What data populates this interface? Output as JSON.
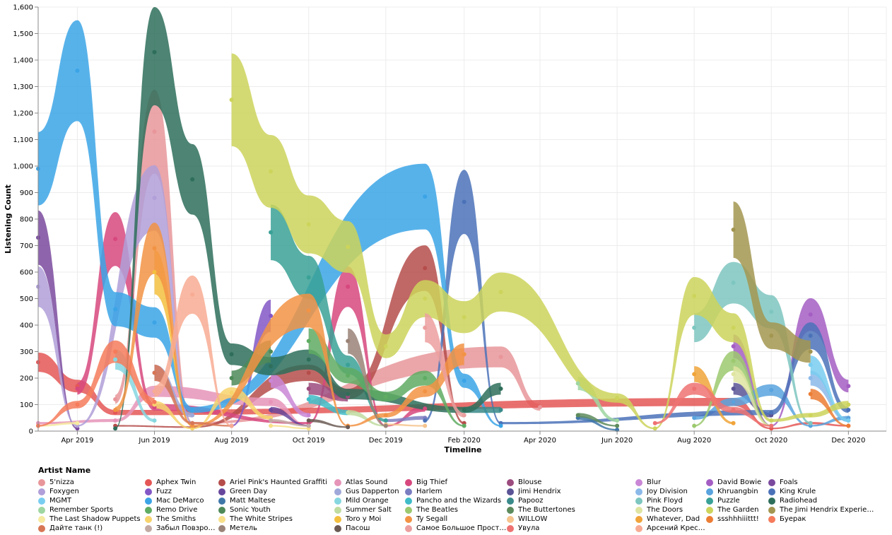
{
  "chart_data": {
    "type": "area",
    "subtype": "streamgraph-style ribbons (each artist shown as a band centred on its count)",
    "xlabel": "Timeline",
    "ylabel": "Listening Count",
    "xlim": [
      "2019-03-01",
      "2020-12-31"
    ],
    "ylim": [
      0,
      1600
    ],
    "x_ticks": [
      {
        "date": "2019-04-01",
        "label": "Apr 2019"
      },
      {
        "date": "2019-06-01",
        "label": "Jun 2019"
      },
      {
        "date": "2019-08-01",
        "label": "Aug 2019"
      },
      {
        "date": "2019-10-01",
        "label": "Oct 2019"
      },
      {
        "date": "2019-12-01",
        "label": "Dec 2019"
      },
      {
        "date": "2020-02-01",
        "label": "Feb 2020"
      },
      {
        "date": "2020-04-01",
        "label": "Apr 2020"
      },
      {
        "date": "2020-06-01",
        "label": "Jun 2020"
      },
      {
        "date": "2020-08-01",
        "label": "Aug 2020"
      },
      {
        "date": "2020-10-01",
        "label": "Oct 2020"
      },
      {
        "date": "2020-12-01",
        "label": "Dec 2020"
      }
    ],
    "y_ticks": [
      0,
      100,
      200,
      300,
      400,
      500,
      600,
      700,
      800,
      900,
      1000,
      1100,
      1200,
      1300,
      1400,
      1500,
      1600
    ],
    "y_tick_labels": [
      "0",
      "100",
      "200",
      "300",
      "400",
      "500",
      "600",
      "700",
      "800",
      "900",
      "1,000",
      "1,100",
      "1,200",
      "1,300",
      "1,400",
      "1,500",
      "1,600"
    ],
    "grid": true,
    "legend_title": "Artist Name",
    "legend_placement": "bottom",
    "series": [
      {
        "name": "5'nizza",
        "color": "#e8969a",
        "points": [
          [
            "2019-05-01",
            120
          ],
          [
            "2019-06-01",
            1130
          ],
          [
            "2019-07-01",
            30
          ],
          [
            "2020-03-01",
            280
          ],
          [
            "2020-04-01",
            90
          ]
        ]
      },
      {
        "name": "Aphex Twin",
        "color": "#e45756",
        "points": [
          [
            "2019-03-01",
            260
          ],
          [
            "2019-04-01",
            170
          ],
          [
            "2019-05-01",
            70
          ],
          [
            "2020-09-01",
            110
          ],
          [
            "2020-10-01",
            10
          ],
          [
            "2020-11-01",
            30
          ],
          [
            "2020-12-01",
            20
          ]
        ]
      },
      {
        "name": "Ariel Pink's Haunted Graffiti",
        "color": "#b54d4b",
        "points": [
          [
            "2019-05-01",
            20
          ],
          [
            "2019-07-01",
            15
          ],
          [
            "2019-10-01",
            220
          ],
          [
            "2019-11-01",
            140
          ],
          [
            "2020-01-01",
            615
          ],
          [
            "2020-02-01",
            30
          ]
        ]
      },
      {
        "name": "Atlas Sound",
        "color": "#e694b8",
        "points": [
          [
            "2019-03-01",
            30
          ],
          [
            "2019-05-01",
            40
          ],
          [
            "2019-06-01",
            150
          ],
          [
            "2019-09-01",
            110
          ],
          [
            "2019-10-01",
            20
          ]
        ]
      },
      {
        "name": "Big Thief",
        "color": "#d7487e",
        "points": [
          [
            "2019-04-01",
            160
          ],
          [
            "2019-05-01",
            725
          ],
          [
            "2019-06-01",
            90
          ],
          [
            "2019-10-01",
            30
          ],
          [
            "2019-11-01",
            545
          ],
          [
            "2019-12-01",
            20
          ],
          [
            "2020-01-01",
            85
          ]
        ]
      },
      {
        "name": "Blouse",
        "color": "#9c4b7e",
        "points": [
          [
            "2019-10-01",
            160
          ],
          [
            "2019-11-01",
            130
          ]
        ]
      },
      {
        "name": "Blur",
        "color": "#c987d6",
        "points": [
          [
            "2019-09-01",
            190
          ],
          [
            "2019-10-01",
            60
          ]
        ]
      },
      {
        "name": "David Bowie",
        "color": "#a45ec3",
        "points": [
          [
            "2020-09-01",
            320
          ],
          [
            "2020-10-01",
            20
          ],
          [
            "2020-11-01",
            440
          ],
          [
            "2020-12-01",
            170
          ]
        ]
      },
      {
        "name": "Foals",
        "color": "#7a4a9e",
        "points": [
          [
            "2019-03-01",
            730
          ],
          [
            "2019-04-01",
            10
          ]
        ]
      },
      {
        "name": "Foxygen",
        "color": "#b09fd8",
        "points": [
          [
            "2019-03-01",
            545
          ],
          [
            "2019-04-01",
            20
          ],
          [
            "2019-06-01",
            880
          ],
          [
            "2019-07-01",
            30
          ]
        ]
      },
      {
        "name": "Fuzz",
        "color": "#8357c6",
        "points": [
          [
            "2019-08-01",
            20
          ],
          [
            "2019-09-01",
            435
          ]
        ]
      },
      {
        "name": "Green Day",
        "color": "#67479c",
        "points": [
          [
            "2019-09-01",
            80
          ],
          [
            "2019-10-01",
            20
          ]
        ]
      },
      {
        "name": "Gus Dapperton",
        "color": "#9fa8d8",
        "points": [
          [
            "2019-06-01",
            220
          ],
          [
            "2019-07-01",
            60
          ]
        ]
      },
      {
        "name": "Harlem",
        "color": "#7b7dc1",
        "points": [
          [
            "2019-12-01",
            40
          ],
          [
            "2020-01-01",
            50
          ]
        ]
      },
      {
        "name": "Jimi Hendrix",
        "color": "#5a5496",
        "points": [
          [
            "2020-09-01",
            160
          ],
          [
            "2020-10-01",
            60
          ]
        ]
      },
      {
        "name": "Joy Division",
        "color": "#8bb9e9",
        "points": [
          [
            "2020-11-01",
            200
          ],
          [
            "2020-12-01",
            40
          ]
        ]
      },
      {
        "name": "Khruangbin",
        "color": "#59a3de",
        "points": [
          [
            "2020-08-01",
            50
          ],
          [
            "2020-09-01",
            110
          ],
          [
            "2020-10-01",
            155
          ],
          [
            "2020-11-01",
            20
          ],
          [
            "2020-12-01",
            50
          ]
        ]
      },
      {
        "name": "King Krule",
        "color": "#4b72b8",
        "points": [
          [
            "2020-01-01",
            40
          ],
          [
            "2020-02-01",
            865
          ],
          [
            "2020-03-01",
            30
          ],
          [
            "2020-10-01",
            70
          ],
          [
            "2020-11-01",
            360
          ],
          [
            "2020-12-01",
            80
          ]
        ]
      },
      {
        "name": "MGMT",
        "color": "#79cdf0",
        "points": [
          [
            "2020-11-01",
            250
          ],
          [
            "2020-12-01",
            40
          ]
        ]
      },
      {
        "name": "Mac DeMarco",
        "color": "#3ba4e6",
        "points": [
          [
            "2019-03-01",
            990
          ],
          [
            "2019-04-01",
            1360
          ],
          [
            "2019-05-01",
            460
          ],
          [
            "2019-06-01",
            410
          ],
          [
            "2019-07-01",
            80
          ],
          [
            "2020-01-01",
            885
          ],
          [
            "2020-02-01",
            190
          ],
          [
            "2020-03-01",
            20
          ]
        ]
      },
      {
        "name": "Matt Maltese",
        "color": "#3f77a8",
        "points": [
          [
            "2020-05-01",
            50
          ],
          [
            "2020-06-01",
            5
          ]
        ]
      },
      {
        "name": "Mild Orange",
        "color": "#86d7e0",
        "points": [
          [
            "2019-05-01",
            270
          ],
          [
            "2019-06-01",
            40
          ]
        ]
      },
      {
        "name": "Pancho and the Wizards",
        "color": "#3fbcc7",
        "points": [
          [
            "2019-10-01",
            120
          ],
          [
            "2019-11-01",
            70
          ]
        ]
      },
      {
        "name": "Papooz",
        "color": "#3a8a8a",
        "points": [
          [
            "2020-02-01",
            80
          ],
          [
            "2020-03-01",
            80
          ]
        ]
      },
      {
        "name": "Pink Floyd",
        "color": "#7ec6c0",
        "points": [
          [
            "2020-08-01",
            390
          ],
          [
            "2020-09-01",
            560
          ],
          [
            "2020-10-01",
            450
          ],
          [
            "2020-11-01",
            30
          ]
        ]
      },
      {
        "name": "Puzzle",
        "color": "#3aa197",
        "points": [
          [
            "2019-09-01",
            750
          ],
          [
            "2019-10-01",
            580
          ],
          [
            "2019-11-01",
            250
          ],
          [
            "2019-12-01",
            40
          ]
        ]
      },
      {
        "name": "Radiohead",
        "color": "#2e6e5a",
        "points": [
          [
            "2019-05-01",
            10
          ],
          [
            "2019-06-01",
            1430
          ],
          [
            "2019-07-01",
            950
          ],
          [
            "2019-08-01",
            290
          ],
          [
            "2019-09-01",
            245
          ],
          [
            "2019-10-01",
            270
          ],
          [
            "2019-11-01",
            140
          ],
          [
            "2020-02-01",
            80
          ],
          [
            "2020-03-01",
            160
          ]
        ]
      },
      {
        "name": "Remember Sports",
        "color": "#9fd6a1",
        "points": [
          [
            "2020-05-01",
            180
          ],
          [
            "2020-06-01",
            40
          ]
        ]
      },
      {
        "name": "Remo Drive",
        "color": "#5fac63",
        "points": [
          [
            "2019-10-01",
            340
          ],
          [
            "2019-11-01",
            210
          ],
          [
            "2019-12-01",
            130
          ],
          [
            "2020-01-01",
            200
          ],
          [
            "2020-02-01",
            20
          ]
        ]
      },
      {
        "name": "Sonic Youth",
        "color": "#4e8a58",
        "points": [
          [
            "2019-08-01",
            200
          ],
          [
            "2019-09-01",
            300
          ]
        ]
      },
      {
        "name": "Summer Salt",
        "color": "#c0dca0",
        "points": [
          [
            "2019-11-01",
            70
          ],
          [
            "2019-12-01",
            20
          ]
        ]
      },
      {
        "name": "The Beatles",
        "color": "#9cc96f",
        "points": [
          [
            "2020-08-01",
            20
          ],
          [
            "2020-09-01",
            265
          ],
          [
            "2020-10-01",
            20
          ]
        ]
      },
      {
        "name": "The Buttertones",
        "color": "#5d8b5d",
        "points": [
          [
            "2020-05-01",
            60
          ],
          [
            "2020-06-01",
            20
          ]
        ]
      },
      {
        "name": "The Doors",
        "color": "#dfe5a1",
        "points": [
          [
            "2020-09-01",
            215
          ],
          [
            "2020-10-01",
            20
          ]
        ]
      },
      {
        "name": "The Garden",
        "color": "#cdd45b",
        "points": [
          [
            "2019-08-01",
            1250
          ],
          [
            "2019-09-01",
            980
          ],
          [
            "2019-10-01",
            780
          ],
          [
            "2019-11-01",
            695
          ],
          [
            "2019-12-01",
            320
          ],
          [
            "2020-01-01",
            500
          ],
          [
            "2020-02-01",
            430
          ],
          [
            "2020-03-01",
            525
          ],
          [
            "2020-06-01",
            125
          ],
          [
            "2020-07-01",
            10
          ],
          [
            "2020-08-01",
            510
          ],
          [
            "2020-09-01",
            390
          ],
          [
            "2020-10-01",
            40
          ],
          [
            "2020-11-01",
            60
          ],
          [
            "2020-12-01",
            100
          ]
        ]
      },
      {
        "name": "The Jimi Hendrix Experience",
        "color": "#a39650",
        "points": [
          [
            "2020-09-01",
            760
          ],
          [
            "2020-10-01",
            360
          ],
          [
            "2020-11-01",
            300
          ]
        ]
      },
      {
        "name": "The Last Shadow Puppets",
        "color": "#f6eaa0",
        "points": [
          [
            "2019-03-01",
            20
          ],
          [
            "2019-04-01",
            30
          ]
        ]
      },
      {
        "name": "The Smiths",
        "color": "#f7d36c",
        "points": [
          [
            "2019-06-01",
            100
          ],
          [
            "2019-07-01",
            10
          ],
          [
            "2019-08-01",
            145
          ],
          [
            "2019-09-01",
            50
          ]
        ]
      },
      {
        "name": "The White Stripes",
        "color": "#f8e08a",
        "points": [
          [
            "2019-09-01",
            20
          ],
          [
            "2019-10-01",
            10
          ]
        ]
      },
      {
        "name": "Toro y Moi",
        "color": "#f3bf3e",
        "points": [
          [
            "2019-06-01",
            600
          ],
          [
            "2019-07-01",
            20
          ]
        ]
      },
      {
        "name": "Ty Segall",
        "color": "#f29344",
        "points": [
          [
            "2019-05-01",
            80
          ],
          [
            "2019-06-01",
            690
          ],
          [
            "2019-07-01",
            20
          ],
          [
            "2019-10-01",
            455
          ],
          [
            "2019-11-01",
            20
          ],
          [
            "2019-12-01",
            60
          ],
          [
            "2020-01-01",
            150
          ],
          [
            "2020-02-01",
            290
          ]
        ]
      },
      {
        "name": "WILLOW",
        "color": "#f6c48e",
        "points": [
          [
            "2019-12-01",
            25
          ],
          [
            "2020-01-01",
            20
          ]
        ]
      },
      {
        "name": "Whatever, Dad",
        "color": "#f0a43a",
        "points": [
          [
            "2020-08-01",
            215
          ],
          [
            "2020-09-01",
            30
          ]
        ]
      },
      {
        "name": "ssshhhiiittt!",
        "color": "#ec7d35",
        "points": [
          [
            "2020-11-01",
            140
          ],
          [
            "2020-12-01",
            20
          ]
        ]
      },
      {
        "name": "Буерак",
        "color": "#f57b5a",
        "points": [
          [
            "2019-03-01",
            20
          ],
          [
            "2019-04-01",
            100
          ],
          [
            "2019-05-01",
            300
          ],
          [
            "2019-06-01",
            110
          ]
        ]
      },
      {
        "name": "Дайте танк (!)",
        "color": "#d77655",
        "points": [
          [
            "2019-06-01",
            220
          ],
          [
            "2019-07-01",
            30
          ],
          [
            "2019-08-01",
            20
          ]
        ]
      },
      {
        "name": "Забыл Повзрослеть",
        "color": "#c2aaa4",
        "points": [
          [
            "2019-09-01",
            40
          ],
          [
            "2019-10-01",
            20
          ]
        ]
      },
      {
        "name": "Метель",
        "color": "#9a8378",
        "points": [
          [
            "2019-11-01",
            340
          ],
          [
            "2019-12-01",
            20
          ]
        ]
      },
      {
        "name": "Пасош",
        "color": "#6b5a54",
        "points": [
          [
            "2019-10-01",
            40
          ],
          [
            "2019-11-01",
            15
          ]
        ]
      },
      {
        "name": "Самое Большое Простое Чи...",
        "color": "#ec9f9f",
        "points": [
          [
            "2020-01-01",
            390
          ],
          [
            "2020-02-01",
            60
          ]
        ]
      },
      {
        "name": "Увула",
        "color": "#ee7272",
        "points": [
          [
            "2020-07-01",
            30
          ],
          [
            "2020-08-01",
            160
          ],
          [
            "2020-09-01",
            80
          ],
          [
            "2020-10-01",
            20
          ]
        ]
      },
      {
        "name": "Арсений Креститель",
        "color": "#f8ab93",
        "points": [
          [
            "2019-06-01",
            150
          ],
          [
            "2019-07-01",
            515
          ],
          [
            "2019-08-01",
            20
          ]
        ]
      }
    ]
  }
}
